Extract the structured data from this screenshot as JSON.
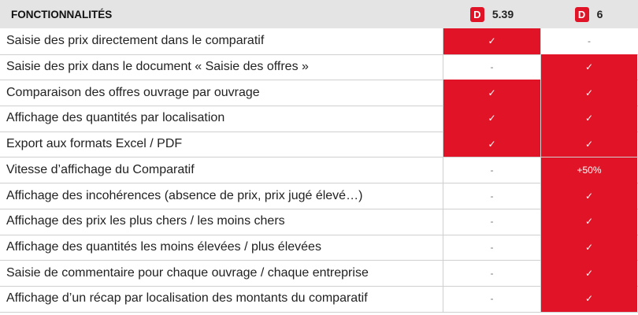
{
  "header": {
    "feature_title": "FONCTIONNALITÉS",
    "col1": {
      "logo_letter": "D",
      "version": "5.39"
    },
    "col2": {
      "logo_letter": "D",
      "version": "6"
    }
  },
  "colors": {
    "accent_red": "#e01426",
    "header_bg": "#e4e4e4",
    "grid": "#cfcfcf"
  },
  "rows": [
    {
      "label": "Saisie des prix directement dans le comparatif",
      "v1": "✓",
      "v2": "-"
    },
    {
      "label": "Saisie des prix dans le document « Saisie des offres »",
      "v1": "-",
      "v2": "✓"
    },
    {
      "label": "Comparaison des offres ouvrage par ouvrage",
      "v1": "✓",
      "v2": "✓"
    },
    {
      "label": "Affichage des quantités par localisation",
      "v1": "✓",
      "v2": "✓"
    },
    {
      "label": "Export aux formats Excel / PDF",
      "v1": "✓",
      "v2": "✓"
    },
    {
      "label": "Vitesse d’affichage du Comparatif",
      "v1": "-",
      "v2": "+50%"
    },
    {
      "label": "Affichage des incohérences (absence de prix, prix jugé élevé…)",
      "v1": "-",
      "v2": "✓"
    },
    {
      "label": "Affichage des prix les plus chers / les moins chers",
      "v1": "-",
      "v2": "✓"
    },
    {
      "label": "Affichage des quantités les moins élevées / plus élevées",
      "v1": "-",
      "v2": "✓"
    },
    {
      "label": "Saisie de commentaire pour chaque ouvrage / chaque entreprise",
      "v1": "-",
      "v2": "✓"
    },
    {
      "label": "Affichage d’un récap par localisation des montants du comparatif",
      "v1": "-",
      "v2": "✓"
    }
  ]
}
